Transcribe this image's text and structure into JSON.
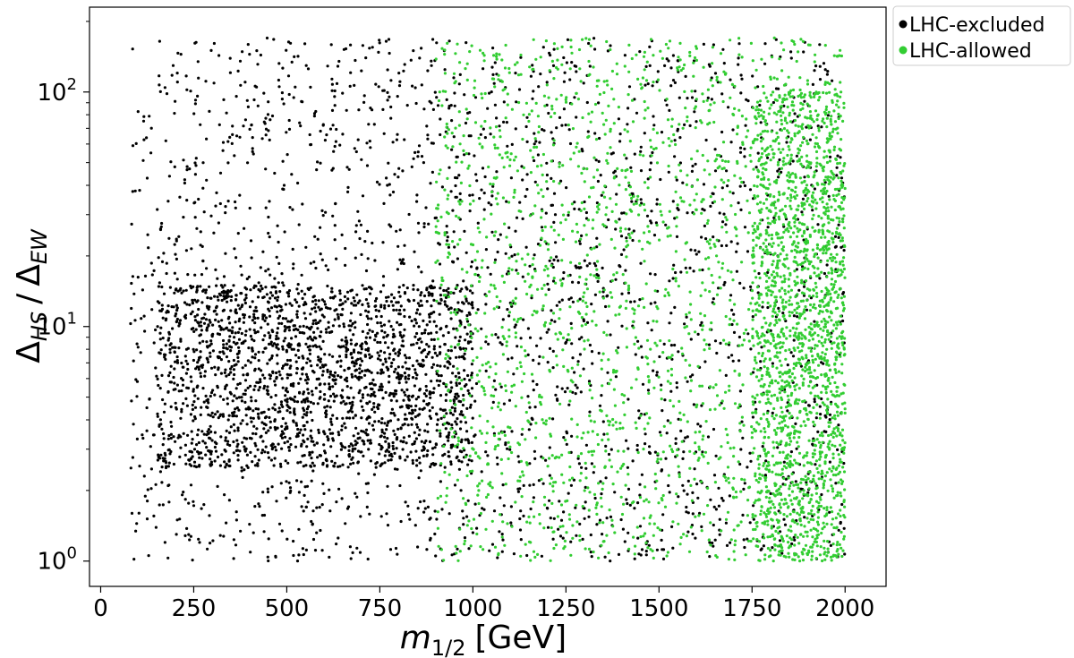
{
  "chart_data": {
    "type": "scatter",
    "xlabel": {
      "base": "m",
      "sub": "1/2",
      "unit": "[GeV]"
    },
    "ylabel": {
      "num_base": "Δ",
      "num_sub": "HS",
      "sep": "/",
      "den_base": "Δ",
      "den_sub": "EW"
    },
    "x_ticks": [
      "0",
      "250",
      "500",
      "750",
      "1000",
      "1250",
      "1500",
      "1750",
      "2000"
    ],
    "y_ticks": [
      {
        "value": 1,
        "base": "10",
        "exp": "0"
      },
      {
        "value": 10,
        "base": "10",
        "exp": "1"
      },
      {
        "value": 100,
        "base": "10",
        "exp": "2"
      }
    ],
    "xlim": [
      -30,
      2110
    ],
    "ylim": [
      0.78,
      230
    ],
    "y_scale": "log",
    "grid": false,
    "legend_position": "outside top-right",
    "series": [
      {
        "name": "LHC-excluded",
        "color": "#000000",
        "x_range": [
          80,
          2000
        ],
        "y_range": [
          1.0,
          170
        ],
        "density_peak": {
          "x": [
            150,
            1000
          ],
          "y": [
            2.5,
            15
          ]
        }
      },
      {
        "name": "LHC-allowed",
        "color": "#32cd32",
        "x_range": [
          900,
          2000
        ],
        "y_range": [
          1.0,
          170
        ],
        "density_peak": {
          "x": [
            1750,
            2000
          ],
          "y": [
            1.0,
            100
          ]
        }
      }
    ]
  }
}
